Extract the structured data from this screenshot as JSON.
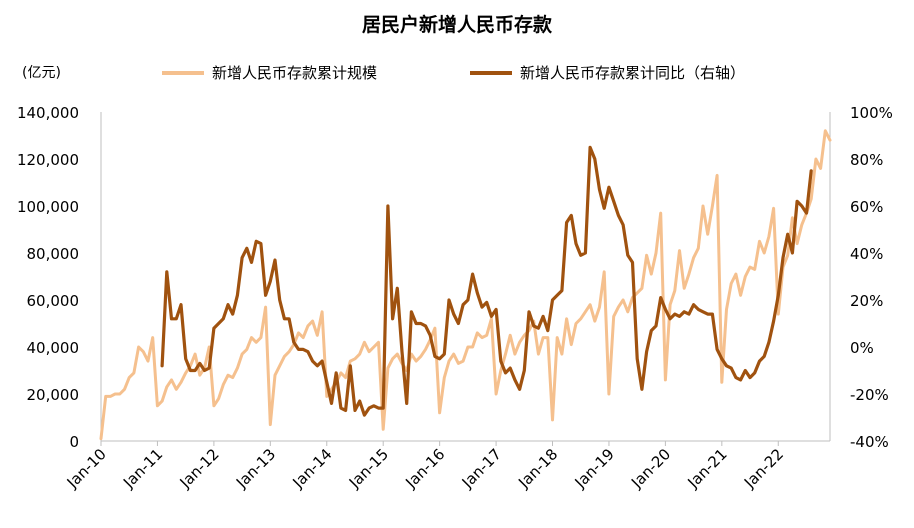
{
  "chart_data": {
    "type": "line",
    "title": "居民户新增人民币存款",
    "unit_left": "(亿元)",
    "x_ticks": [
      "Jan-10",
      "Jan-11",
      "Jan-12",
      "Jan-13",
      "Jan-14",
      "Jan-15",
      "Jan-16",
      "Jan-17",
      "Jan-18",
      "Jan-19",
      "Jan-20",
      "Jan-21",
      "Jan-22"
    ],
    "left_axis": {
      "ylim": [
        0,
        140000
      ],
      "ticks": [
        "0",
        "20,000",
        "40,000",
        "60,000",
        "80,000",
        "100,000",
        "120,000",
        "140,000"
      ]
    },
    "right_axis": {
      "ylim": [
        -40,
        100
      ],
      "ticks": [
        "-40%",
        "-20%",
        "0%",
        "20%",
        "40%",
        "60%",
        "80%",
        "100%"
      ]
    },
    "series": [
      {
        "name": "新增人民币存款累计规模",
        "axis": "left",
        "color": "#F5C08E",
        "start": "2010-01",
        "values": [
          1000,
          19000,
          19000,
          20000,
          20000,
          22000,
          27000,
          29000,
          40000,
          38000,
          34000,
          44000,
          15000,
          17000,
          23000,
          26000,
          22000,
          25000,
          29000,
          32000,
          37000,
          28000,
          31000,
          40000,
          15000,
          18000,
          24000,
          28000,
          27000,
          31000,
          37000,
          39000,
          44000,
          42000,
          44000,
          57000,
          7000,
          28000,
          32000,
          36000,
          38000,
          41000,
          46000,
          44000,
          49000,
          51000,
          45000,
          55000,
          19000,
          22000,
          25000,
          29000,
          27000,
          34000,
          35000,
          37000,
          42000,
          38000,
          40000,
          42000,
          5000,
          31000,
          35000,
          37000,
          33000,
          30000,
          37000,
          34000,
          36000,
          39000,
          43000,
          48000,
          12000,
          27000,
          34000,
          37000,
          33000,
          34000,
          40000,
          40000,
          46000,
          44000,
          45000,
          52000,
          20000,
          30000,
          37000,
          45000,
          37000,
          42000,
          45000,
          47000,
          51000,
          37000,
          44000,
          44000,
          9000,
          44000,
          37000,
          52000,
          41000,
          50000,
          52000,
          55000,
          58000,
          51000,
          57000,
          72000,
          20000,
          53000,
          57000,
          60000,
          55000,
          61000,
          63000,
          65000,
          79000,
          71000,
          80000,
          97000,
          26000,
          58000,
          64000,
          81000,
          65000,
          71000,
          78000,
          82000,
          100000,
          88000,
          100000,
          113000,
          25000,
          56000,
          67000,
          71000,
          62000,
          70000,
          74000,
          73000,
          85000,
          80000,
          87000,
          99000,
          54000,
          74000,
          79000,
          95000,
          84000,
          92000,
          97000,
          103000,
          120000,
          116000,
          132000,
          128000
        ]
      },
      {
        "name": "新增人民币存款累计同比（右轴）",
        "axis": "right",
        "color": "#A0520F",
        "start": "2011-02",
        "values": [
          -8,
          32,
          12,
          12,
          18,
          -5,
          -10,
          -10,
          -7,
          -10,
          -9,
          8,
          10,
          12,
          18,
          14,
          22,
          38,
          42,
          36,
          45,
          44,
          22,
          28,
          37,
          20,
          12,
          12,
          2,
          -1,
          -1,
          -2,
          -6,
          -8,
          -6,
          -15,
          -24,
          -11,
          -26,
          -27,
          -8,
          -27,
          -23,
          -29,
          -26,
          -25,
          -26,
          -26,
          60,
          12,
          25,
          -2,
          -24,
          15,
          10,
          10,
          9,
          5,
          -4,
          -5,
          -3,
          20,
          14,
          10,
          18,
          20,
          31,
          23,
          17,
          19,
          13,
          16,
          -6,
          -11,
          -9,
          -14,
          -18,
          -10,
          15,
          9,
          8,
          13,
          7,
          20,
          22,
          24,
          53,
          56,
          44,
          39,
          40,
          85,
          80,
          67,
          59,
          68,
          62,
          56,
          52,
          39,
          36,
          -5,
          -18,
          -2,
          7,
          9,
          21,
          16,
          12,
          14,
          13,
          15,
          14,
          18,
          16,
          15,
          14,
          14,
          -1,
          -5,
          -8,
          -9,
          -13,
          -14,
          -10,
          -13,
          -11,
          -6,
          -4,
          2,
          11,
          22,
          38,
          48,
          40,
          62,
          60,
          57,
          75
        ]
      }
    ]
  }
}
